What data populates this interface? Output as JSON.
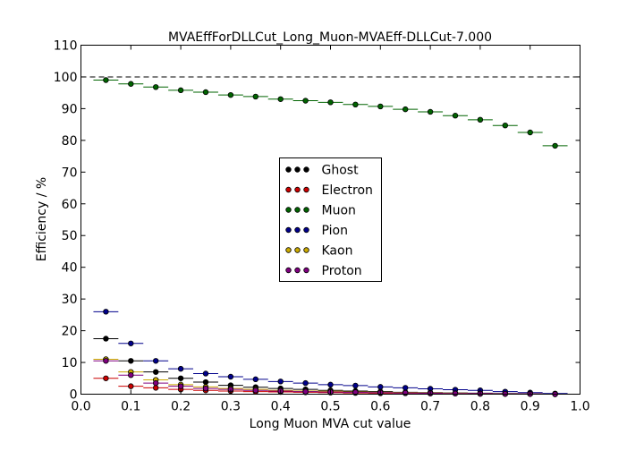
{
  "chart_data": {
    "type": "scatter",
    "title": "MVAEffForDLLCut_Long_Muon-MVAEff-DLLCut-7.000",
    "xlabel": "Long Muon MVA cut value",
    "ylabel": "Efficiency / %",
    "xlim": [
      0.0,
      1.0
    ],
    "ylim": [
      0,
      110
    ],
    "xticks": [
      "0.0",
      "0.1",
      "0.2",
      "0.3",
      "0.4",
      "0.5",
      "0.6",
      "0.7",
      "0.8",
      "0.9",
      "1.0"
    ],
    "yticks": [
      "0",
      "10",
      "20",
      "30",
      "40",
      "50",
      "60",
      "70",
      "80",
      "90",
      "100",
      "110"
    ],
    "reference_line_y": 100,
    "grid": false,
    "legend_position": "center",
    "x": [
      0.05,
      0.1,
      0.15,
      0.2,
      0.25,
      0.3,
      0.35,
      0.4,
      0.45,
      0.5,
      0.55,
      0.6,
      0.65,
      0.7,
      0.75,
      0.8,
      0.85,
      0.9,
      0.95
    ],
    "x_error": 0.025,
    "series": [
      {
        "name": "Ghost",
        "color": "#000000",
        "values": [
          17.5,
          10.5,
          7.0,
          5.0,
          3.8,
          2.8,
          2.2,
          1.8,
          1.5,
          1.2,
          1.0,
          0.8,
          0.6,
          0.5,
          0.4,
          0.3,
          0.2,
          0.1,
          0.1
        ]
      },
      {
        "name": "Electron",
        "color": "#cc0000",
        "values": [
          5.0,
          2.5,
          2.0,
          1.5,
          1.2,
          1.0,
          0.8,
          0.7,
          0.6,
          0.5,
          0.4,
          0.3,
          0.3,
          0.2,
          0.2,
          0.1,
          0.1,
          0.1,
          0.0
        ]
      },
      {
        "name": "Muon",
        "color": "#006400",
        "values": [
          99.0,
          97.8,
          96.8,
          95.8,
          95.2,
          94.3,
          93.8,
          93.0,
          92.5,
          92.0,
          91.3,
          90.7,
          89.8,
          89.0,
          87.8,
          86.5,
          84.7,
          82.5,
          78.3
        ]
      },
      {
        "name": "Pion",
        "color": "#00008b",
        "values": [
          26.0,
          16.0,
          10.5,
          8.0,
          6.5,
          5.5,
          4.7,
          4.0,
          3.5,
          3.0,
          2.7,
          2.3,
          2.0,
          1.7,
          1.4,
          1.2,
          0.8,
          0.5,
          0.2
        ]
      },
      {
        "name": "Kaon",
        "color": "#ccaa00",
        "values": [
          11.0,
          7.0,
          4.5,
          3.0,
          2.3,
          1.8,
          1.5,
          1.2,
          1.0,
          0.9,
          0.7,
          0.6,
          0.5,
          0.4,
          0.3,
          0.2,
          0.1,
          0.1,
          0.0
        ]
      },
      {
        "name": "Proton",
        "color": "#800080",
        "values": [
          10.5,
          6.0,
          3.5,
          2.5,
          1.8,
          1.5,
          1.2,
          1.0,
          0.8,
          0.7,
          0.6,
          0.5,
          0.4,
          0.3,
          0.2,
          0.2,
          0.1,
          0.1,
          0.0
        ]
      }
    ]
  }
}
